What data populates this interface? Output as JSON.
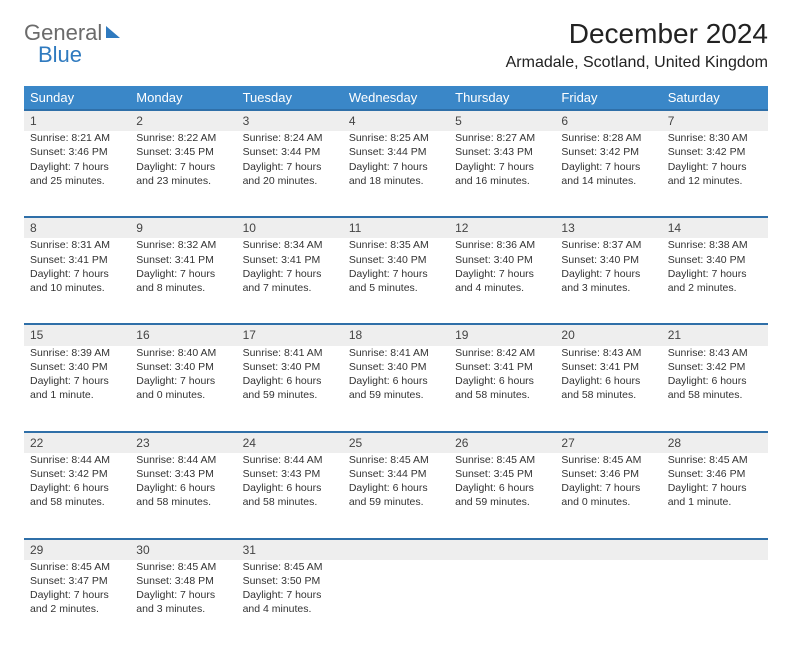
{
  "logo": {
    "line1": "General",
    "line2": "Blue"
  },
  "title": "December 2024",
  "location": "Armadale, Scotland, United Kingdom",
  "colors": {
    "header_bg": "#3a87c8",
    "header_text": "#ffffff",
    "row_divider": "#2f6fa8",
    "daynum_bg": "#eeeeee",
    "body_text": "#333333",
    "logo_gray": "#6b6b6b",
    "logo_blue": "#2f7abf"
  },
  "weekdays": [
    "Sunday",
    "Monday",
    "Tuesday",
    "Wednesday",
    "Thursday",
    "Friday",
    "Saturday"
  ],
  "weeks": [
    [
      {
        "num": "1",
        "sunrise": "Sunrise: 8:21 AM",
        "sunset": "Sunset: 3:46 PM",
        "daylight": "Daylight: 7 hours and 25 minutes."
      },
      {
        "num": "2",
        "sunrise": "Sunrise: 8:22 AM",
        "sunset": "Sunset: 3:45 PM",
        "daylight": "Daylight: 7 hours and 23 minutes."
      },
      {
        "num": "3",
        "sunrise": "Sunrise: 8:24 AM",
        "sunset": "Sunset: 3:44 PM",
        "daylight": "Daylight: 7 hours and 20 minutes."
      },
      {
        "num": "4",
        "sunrise": "Sunrise: 8:25 AM",
        "sunset": "Sunset: 3:44 PM",
        "daylight": "Daylight: 7 hours and 18 minutes."
      },
      {
        "num": "5",
        "sunrise": "Sunrise: 8:27 AM",
        "sunset": "Sunset: 3:43 PM",
        "daylight": "Daylight: 7 hours and 16 minutes."
      },
      {
        "num": "6",
        "sunrise": "Sunrise: 8:28 AM",
        "sunset": "Sunset: 3:42 PM",
        "daylight": "Daylight: 7 hours and 14 minutes."
      },
      {
        "num": "7",
        "sunrise": "Sunrise: 8:30 AM",
        "sunset": "Sunset: 3:42 PM",
        "daylight": "Daylight: 7 hours and 12 minutes."
      }
    ],
    [
      {
        "num": "8",
        "sunrise": "Sunrise: 8:31 AM",
        "sunset": "Sunset: 3:41 PM",
        "daylight": "Daylight: 7 hours and 10 minutes."
      },
      {
        "num": "9",
        "sunrise": "Sunrise: 8:32 AM",
        "sunset": "Sunset: 3:41 PM",
        "daylight": "Daylight: 7 hours and 8 minutes."
      },
      {
        "num": "10",
        "sunrise": "Sunrise: 8:34 AM",
        "sunset": "Sunset: 3:41 PM",
        "daylight": "Daylight: 7 hours and 7 minutes."
      },
      {
        "num": "11",
        "sunrise": "Sunrise: 8:35 AM",
        "sunset": "Sunset: 3:40 PM",
        "daylight": "Daylight: 7 hours and 5 minutes."
      },
      {
        "num": "12",
        "sunrise": "Sunrise: 8:36 AM",
        "sunset": "Sunset: 3:40 PM",
        "daylight": "Daylight: 7 hours and 4 minutes."
      },
      {
        "num": "13",
        "sunrise": "Sunrise: 8:37 AM",
        "sunset": "Sunset: 3:40 PM",
        "daylight": "Daylight: 7 hours and 3 minutes."
      },
      {
        "num": "14",
        "sunrise": "Sunrise: 8:38 AM",
        "sunset": "Sunset: 3:40 PM",
        "daylight": "Daylight: 7 hours and 2 minutes."
      }
    ],
    [
      {
        "num": "15",
        "sunrise": "Sunrise: 8:39 AM",
        "sunset": "Sunset: 3:40 PM",
        "daylight": "Daylight: 7 hours and 1 minute."
      },
      {
        "num": "16",
        "sunrise": "Sunrise: 8:40 AM",
        "sunset": "Sunset: 3:40 PM",
        "daylight": "Daylight: 7 hours and 0 minutes."
      },
      {
        "num": "17",
        "sunrise": "Sunrise: 8:41 AM",
        "sunset": "Sunset: 3:40 PM",
        "daylight": "Daylight: 6 hours and 59 minutes."
      },
      {
        "num": "18",
        "sunrise": "Sunrise: 8:41 AM",
        "sunset": "Sunset: 3:40 PM",
        "daylight": "Daylight: 6 hours and 59 minutes."
      },
      {
        "num": "19",
        "sunrise": "Sunrise: 8:42 AM",
        "sunset": "Sunset: 3:41 PM",
        "daylight": "Daylight: 6 hours and 58 minutes."
      },
      {
        "num": "20",
        "sunrise": "Sunrise: 8:43 AM",
        "sunset": "Sunset: 3:41 PM",
        "daylight": "Daylight: 6 hours and 58 minutes."
      },
      {
        "num": "21",
        "sunrise": "Sunrise: 8:43 AM",
        "sunset": "Sunset: 3:42 PM",
        "daylight": "Daylight: 6 hours and 58 minutes."
      }
    ],
    [
      {
        "num": "22",
        "sunrise": "Sunrise: 8:44 AM",
        "sunset": "Sunset: 3:42 PM",
        "daylight": "Daylight: 6 hours and 58 minutes."
      },
      {
        "num": "23",
        "sunrise": "Sunrise: 8:44 AM",
        "sunset": "Sunset: 3:43 PM",
        "daylight": "Daylight: 6 hours and 58 minutes."
      },
      {
        "num": "24",
        "sunrise": "Sunrise: 8:44 AM",
        "sunset": "Sunset: 3:43 PM",
        "daylight": "Daylight: 6 hours and 58 minutes."
      },
      {
        "num": "25",
        "sunrise": "Sunrise: 8:45 AM",
        "sunset": "Sunset: 3:44 PM",
        "daylight": "Daylight: 6 hours and 59 minutes."
      },
      {
        "num": "26",
        "sunrise": "Sunrise: 8:45 AM",
        "sunset": "Sunset: 3:45 PM",
        "daylight": "Daylight: 6 hours and 59 minutes."
      },
      {
        "num": "27",
        "sunrise": "Sunrise: 8:45 AM",
        "sunset": "Sunset: 3:46 PM",
        "daylight": "Daylight: 7 hours and 0 minutes."
      },
      {
        "num": "28",
        "sunrise": "Sunrise: 8:45 AM",
        "sunset": "Sunset: 3:46 PM",
        "daylight": "Daylight: 7 hours and 1 minute."
      }
    ],
    [
      {
        "num": "29",
        "sunrise": "Sunrise: 8:45 AM",
        "sunset": "Sunset: 3:47 PM",
        "daylight": "Daylight: 7 hours and 2 minutes."
      },
      {
        "num": "30",
        "sunrise": "Sunrise: 8:45 AM",
        "sunset": "Sunset: 3:48 PM",
        "daylight": "Daylight: 7 hours and 3 minutes."
      },
      {
        "num": "31",
        "sunrise": "Sunrise: 8:45 AM",
        "sunset": "Sunset: 3:50 PM",
        "daylight": "Daylight: 7 hours and 4 minutes."
      },
      null,
      null,
      null,
      null
    ]
  ]
}
